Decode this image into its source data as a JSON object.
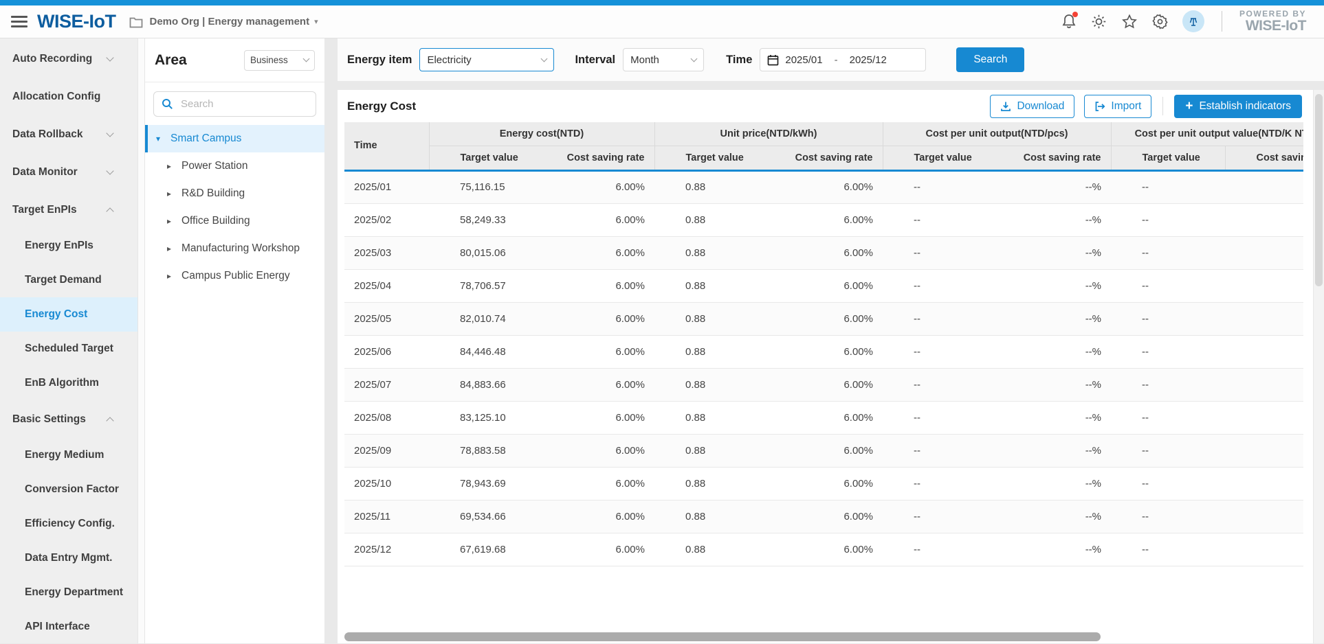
{
  "header": {
    "brand": "WISE-IoT",
    "breadcrumb": "Demo Org | Energy management",
    "powered_by": "POWERED BY",
    "powered_brand": "WISE-IoT"
  },
  "colors": {
    "primary": "#1789d2",
    "topstrip": "#1591d9",
    "selected_bg": "#ddf0fc"
  },
  "sidebar": {
    "items": [
      {
        "label": "Auto Recording",
        "chevron": "down"
      },
      {
        "label": "Allocation Config"
      },
      {
        "label": "Data Rollback",
        "chevron": "down"
      },
      {
        "label": "Data Monitor",
        "chevron": "down"
      },
      {
        "label": "Target EnPIs",
        "chevron": "up"
      },
      {
        "label": "Energy EnPIs",
        "child": true
      },
      {
        "label": "Target Demand",
        "child": true
      },
      {
        "label": "Energy Cost",
        "child": true,
        "selected": true
      },
      {
        "label": "Scheduled Target",
        "child": true
      },
      {
        "label": "EnB Algorithm",
        "child": true
      },
      {
        "label": "Basic Settings",
        "chevron": "up"
      },
      {
        "label": "Energy Medium",
        "child": true
      },
      {
        "label": "Conversion Factor",
        "child": true
      },
      {
        "label": "Efficiency Config.",
        "child": true
      },
      {
        "label": "Data Entry Mgmt.",
        "child": true
      },
      {
        "label": "Energy Department",
        "child": true
      },
      {
        "label": "API Interface",
        "child": true
      }
    ]
  },
  "area": {
    "title": "Area",
    "select_value": "Business",
    "search_placeholder": "Search",
    "tree": [
      {
        "label": "Smart Campus",
        "caret": "down",
        "selected": true,
        "level": 0
      },
      {
        "label": "Power Station",
        "caret": "right",
        "level": 1
      },
      {
        "label": "R&D Building",
        "caret": "right",
        "level": 1
      },
      {
        "label": "Office Building",
        "caret": "right",
        "level": 1
      },
      {
        "label": "Manufacturing Workshop",
        "caret": "right",
        "level": 1
      },
      {
        "label": "Campus Public Energy",
        "caret": "right",
        "level": 1
      }
    ]
  },
  "filters": {
    "energy_item_label": "Energy item",
    "energy_item_value": "Electricity",
    "interval_label": "Interval",
    "interval_value": "Month",
    "time_label": "Time",
    "time_from": "2025/01",
    "time_separator": "-",
    "time_to": "2025/12",
    "search_button": "Search"
  },
  "content": {
    "title": "Energy Cost",
    "download_button": "Download",
    "import_button": "Import",
    "establish_plus": "+",
    "establish_button": "Establish indicators"
  },
  "table": {
    "time_header": "Time",
    "groups": [
      "Energy cost(NTD)",
      "Unit price(NTD/kWh)",
      "Cost per unit output(NTD/pcs)",
      "Cost per unit output value(NTD/K NTD)"
    ],
    "sub_headers": [
      "Target value",
      "Cost saving rate"
    ],
    "rows": [
      {
        "time": "2025/01",
        "cells": [
          "75,116.15",
          "6.00%",
          "0.88",
          "6.00%",
          "--",
          "--%",
          "--",
          ""
        ]
      },
      {
        "time": "2025/02",
        "cells": [
          "58,249.33",
          "6.00%",
          "0.88",
          "6.00%",
          "--",
          "--%",
          "--",
          ""
        ]
      },
      {
        "time": "2025/03",
        "cells": [
          "80,015.06",
          "6.00%",
          "0.88",
          "6.00%",
          "--",
          "--%",
          "--",
          ""
        ]
      },
      {
        "time": "2025/04",
        "cells": [
          "78,706.57",
          "6.00%",
          "0.88",
          "6.00%",
          "--",
          "--%",
          "--",
          ""
        ]
      },
      {
        "time": "2025/05",
        "cells": [
          "82,010.74",
          "6.00%",
          "0.88",
          "6.00%",
          "--",
          "--%",
          "--",
          ""
        ]
      },
      {
        "time": "2025/06",
        "cells": [
          "84,446.48",
          "6.00%",
          "0.88",
          "6.00%",
          "--",
          "--%",
          "--",
          ""
        ]
      },
      {
        "time": "2025/07",
        "cells": [
          "84,883.66",
          "6.00%",
          "0.88",
          "6.00%",
          "--",
          "--%",
          "--",
          ""
        ]
      },
      {
        "time": "2025/08",
        "cells": [
          "83,125.10",
          "6.00%",
          "0.88",
          "6.00%",
          "--",
          "--%",
          "--",
          ""
        ]
      },
      {
        "time": "2025/09",
        "cells": [
          "78,883.58",
          "6.00%",
          "0.88",
          "6.00%",
          "--",
          "--%",
          "--",
          ""
        ]
      },
      {
        "time": "2025/10",
        "cells": [
          "78,943.69",
          "6.00%",
          "0.88",
          "6.00%",
          "--",
          "--%",
          "--",
          ""
        ]
      },
      {
        "time": "2025/11",
        "cells": [
          "69,534.66",
          "6.00%",
          "0.88",
          "6.00%",
          "--",
          "--%",
          "--",
          ""
        ]
      },
      {
        "time": "2025/12",
        "cells": [
          "67,619.68",
          "6.00%",
          "0.88",
          "6.00%",
          "--",
          "--%",
          "--",
          ""
        ]
      }
    ]
  }
}
